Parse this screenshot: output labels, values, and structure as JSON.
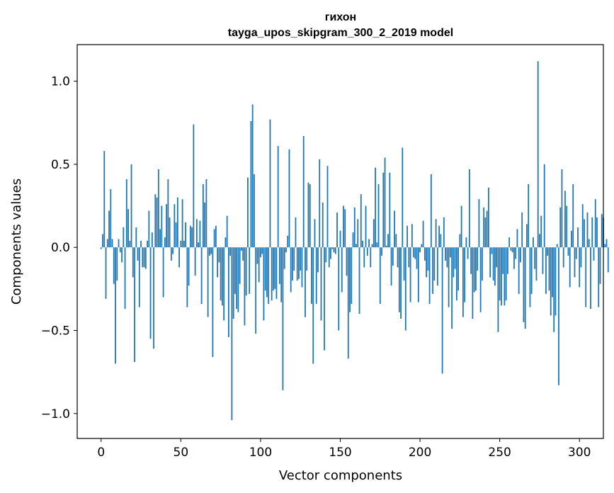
{
  "chart_data": {
    "type": "bar",
    "title": "гихон",
    "subtitle": "tayga_upos_skipgram_300_2_2019 model",
    "xlabel": "Vector components",
    "ylabel": "Components values",
    "xlim": [
      -15,
      315
    ],
    "ylim": [
      -1.15,
      1.22
    ],
    "xticks": [
      0,
      50,
      100,
      150,
      200,
      250,
      300
    ],
    "xtick_labels": [
      "0",
      "50",
      "100",
      "150",
      "200",
      "250",
      "300"
    ],
    "yticks": [
      -1.0,
      -0.5,
      0.0,
      0.5,
      1.0
    ],
    "ytick_labels": [
      "−1.0",
      "−0.5",
      "0.0",
      "0.5",
      "1.0"
    ],
    "bar_color": "#1f77b4",
    "series": [
      {
        "name": "гихон",
        "x_start": 0,
        "values": [
          -0.01,
          0.08,
          0.58,
          -0.31,
          0.05,
          0.22,
          0.35,
          0.05,
          -0.22,
          -0.7,
          -0.2,
          0.05,
          -0.03,
          -0.09,
          0.12,
          -0.37,
          0.41,
          0.23,
          0.04,
          0.5,
          -0.18,
          -0.69,
          0.12,
          -0.08,
          -0.36,
          0.04,
          -0.12,
          -0.12,
          -0.13,
          0.04,
          0.22,
          -0.55,
          0.09,
          -0.61,
          0.32,
          0.3,
          0.47,
          0.11,
          0.25,
          -0.3,
          0.06,
          0.26,
          0.41,
          0.18,
          -0.08,
          -0.04,
          0.26,
          0.15,
          0.3,
          -0.12,
          0.04,
          0.29,
          0.04,
          0.15,
          -0.36,
          -0.23,
          0.13,
          0.12,
          0.74,
          -0.17,
          0.17,
          0.03,
          0.16,
          -0.34,
          0.38,
          0.27,
          0.41,
          -0.42,
          -0.05,
          -0.04,
          -0.66,
          0.11,
          0.13,
          -0.18,
          -0.09,
          -0.32,
          -0.35,
          -0.44,
          0.06,
          0.19,
          -0.54,
          -0.05,
          -1.04,
          -0.43,
          -0.28,
          -0.37,
          -0.39,
          -0.22,
          -0.02,
          -0.08,
          -0.47,
          -0.29,
          0.42,
          -0.28,
          0.76,
          0.86,
          0.44,
          -0.52,
          -0.1,
          -0.21,
          -0.06,
          -0.04,
          -0.44,
          -0.26,
          -0.3,
          -0.34,
          0.77,
          -0.32,
          -0.26,
          -0.25,
          -0.31,
          0.61,
          -0.22,
          -0.33,
          -0.86,
          -0.13,
          -0.03,
          0.07,
          0.59,
          -0.27,
          -0.2,
          -0.14,
          0.18,
          -0.2,
          -0.19,
          -0.14,
          -0.24,
          0.67,
          -0.42,
          -0.14,
          0.39,
          0.38,
          -0.34,
          -0.7,
          0.17,
          -0.34,
          -0.15,
          0.53,
          -0.44,
          0.27,
          -0.62,
          -0.09,
          0.49,
          -0.12,
          -0.07,
          -0.01,
          -0.03,
          -0.04,
          0.21,
          -0.5,
          0.1,
          -0.27,
          0.25,
          0.23,
          -0.17,
          -0.67,
          -0.39,
          -0.34,
          0.09,
          0.24,
          0.02,
          0.17,
          -0.4,
          0.32,
          0.04,
          -0.12,
          0.25,
          -0.05,
          0.05,
          -0.12,
          0.02,
          0.17,
          0.48,
          0.03,
          0.38,
          -0.34,
          -0.05,
          0.45,
          0.54,
          0.01,
          0.08,
          0.45,
          -0.23,
          -0.11,
          0.22,
          0.08,
          -0.12,
          -0.39,
          -0.43,
          0.6,
          -0.2,
          -0.5,
          0.13,
          -0.12,
          -0.33,
          0.14,
          -0.06,
          -0.07,
          -0.13,
          -0.33,
          -0.03,
          0.02,
          0.16,
          -0.08,
          -0.18,
          -0.14,
          -0.34,
          0.44,
          -0.28,
          -0.2,
          0.17,
          -0.23,
          0.13,
          0.08,
          -0.76,
          0.18,
          -0.08,
          -0.12,
          -0.36,
          -0.06,
          -0.49,
          -0.18,
          -0.13,
          -0.32,
          -0.26,
          0.08,
          0.25,
          -0.42,
          -0.33,
          0.06,
          -0.07,
          0.47,
          -0.16,
          -0.43,
          -0.27,
          -0.26,
          -0.14,
          0.29,
          -0.39,
          -0.2,
          0.24,
          0.18,
          0.22,
          0.36,
          -0.18,
          -0.04,
          -0.2,
          -0.23,
          -0.12,
          -0.51,
          -0.32,
          -0.35,
          -0.16,
          -0.35,
          -0.32,
          -0.16,
          0.06,
          -0.02,
          -0.03,
          -0.13,
          -0.07,
          0.11,
          -0.28,
          -0.09,
          0.21,
          -0.45,
          -0.49,
          0.14,
          0.38,
          -0.36,
          -0.28,
          0.06,
          -0.13,
          -0.2,
          1.12,
          0.08,
          0.19,
          -0.16,
          0.5,
          -0.28,
          -0.05,
          -0.26,
          -0.41,
          -0.3,
          -0.51,
          -0.41,
          0.02,
          -0.83,
          0.24,
          0.47,
          -0.12,
          0.34,
          0.25,
          -0.05,
          -0.24,
          0.1,
          0.38,
          -0.18,
          -0.07,
          0.12,
          -0.24,
          -0.12,
          0.26,
          0.17,
          -0.36,
          0.21,
          0.05,
          -0.37,
          0.18,
          -0.08,
          0.29,
          0.18,
          -0.36,
          -0.22,
          0.2,
          0.18,
          0.02,
          0.05,
          -0.15
        ]
      }
    ]
  }
}
